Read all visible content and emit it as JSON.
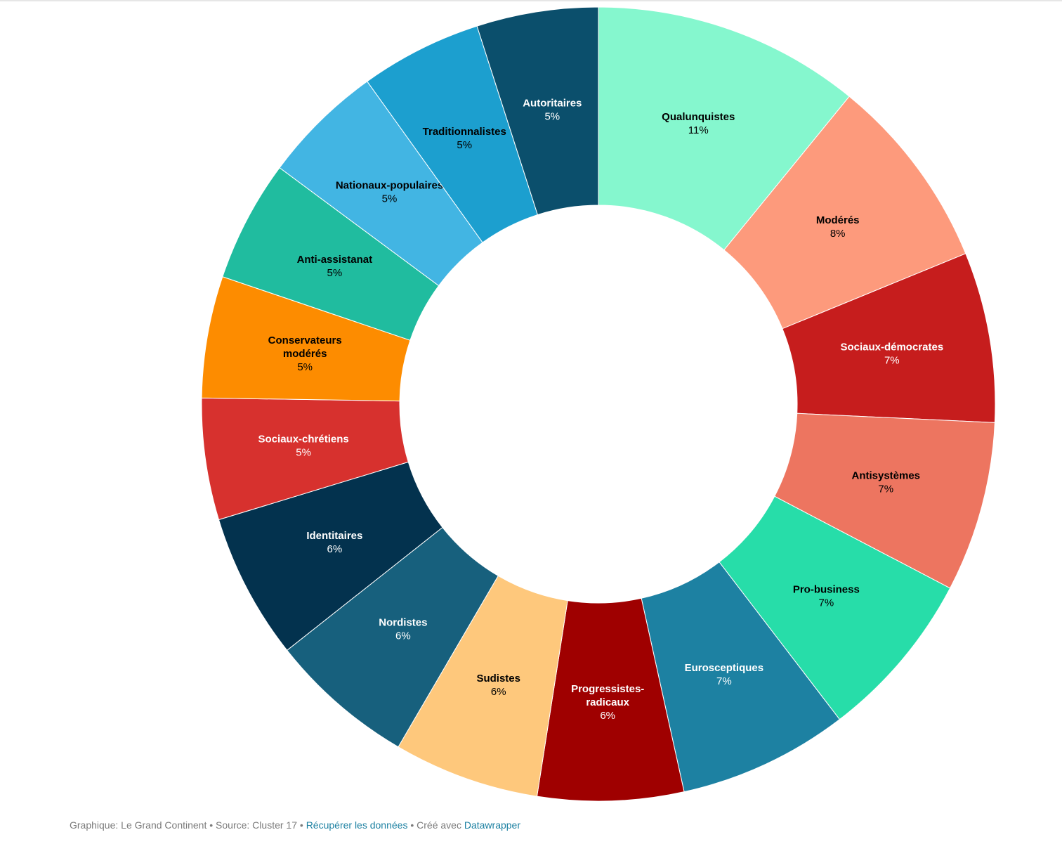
{
  "chart_data": {
    "type": "pie",
    "donut": true,
    "segments": [
      {
        "name": "Qualunquistes",
        "label_lines": [
          "Qualunquistes"
        ],
        "value": 11,
        "display": "11%",
        "color": "#85f7ce",
        "text_color": "#000000"
      },
      {
        "name": "Modérés",
        "label_lines": [
          "Modérés"
        ],
        "value": 8,
        "display": "8%",
        "color": "#fd9a7c",
        "text_color": "#000000"
      },
      {
        "name": "Sociaux-démocrates",
        "label_lines": [
          "Sociaux-démocrates"
        ],
        "value": 7,
        "display": "7%",
        "color": "#c61d1d",
        "text_color": "#ffffff"
      },
      {
        "name": "Antisystèmes",
        "label_lines": [
          "Antisystèmes"
        ],
        "value": 7,
        "display": "7%",
        "color": "#ed7560",
        "text_color": "#000000"
      },
      {
        "name": "Pro-business",
        "label_lines": [
          "Pro-business"
        ],
        "value": 7,
        "display": "7%",
        "color": "#27dda9",
        "text_color": "#000000"
      },
      {
        "name": "Eurosceptiques",
        "label_lines": [
          "Eurosceptiques"
        ],
        "value": 7,
        "display": "7%",
        "color": "#1d81a2",
        "text_color": "#ffffff"
      },
      {
        "name": "Progressistes-radicaux",
        "label_lines": [
          "Progressistes-",
          "radicaux"
        ],
        "value": 6,
        "display": "6%",
        "color": "#9f0000",
        "text_color": "#ffffff"
      },
      {
        "name": "Sudistes",
        "label_lines": [
          "Sudistes"
        ],
        "value": 6,
        "display": "6%",
        "color": "#fec87c",
        "text_color": "#000000"
      },
      {
        "name": "Nordistes",
        "label_lines": [
          "Nordistes"
        ],
        "value": 6,
        "display": "6%",
        "color": "#17607d",
        "text_color": "#ffffff"
      },
      {
        "name": "Identitaires",
        "label_lines": [
          "Identitaires"
        ],
        "value": 6,
        "display": "6%",
        "color": "#03324e",
        "text_color": "#ffffff"
      },
      {
        "name": "Sociaux-chrétiens",
        "label_lines": [
          "Sociaux-chrétiens"
        ],
        "value": 5,
        "display": "5%",
        "color": "#d7312e",
        "text_color": "#ffffff"
      },
      {
        "name": "Conservateurs modérés",
        "label_lines": [
          "Conservateurs",
          "modérés"
        ],
        "value": 5,
        "display": "5%",
        "color": "#fd8c00",
        "text_color": "#000000"
      },
      {
        "name": "Anti-assistanat",
        "label_lines": [
          "Anti-assistanat"
        ],
        "value": 5,
        "display": "5%",
        "color": "#20bc9f",
        "text_color": "#000000"
      },
      {
        "name": "Nationaux-populaires",
        "label_lines": [
          "Nationaux-populaires"
        ],
        "value": 5,
        "display": "5%",
        "color": "#42b5e3",
        "text_color": "#000000"
      },
      {
        "name": "Traditionnalistes",
        "label_lines": [
          "Traditionnalistes"
        ],
        "value": 5,
        "display": "5%",
        "color": "#1c9fcf",
        "text_color": "#000000"
      },
      {
        "name": "Autoritaires",
        "label_lines": [
          "Autoritaires"
        ],
        "value": 5,
        "display": "5%",
        "color": "#0b4f6c",
        "text_color": "#ffffff"
      }
    ]
  },
  "footer": {
    "chart_by": "Graphique: Le Grand Continent",
    "separator": " • ",
    "source": "Source: Cluster 17",
    "get_data_link": "Récupérer les données",
    "created_with": "Créé avec",
    "datawrapper_link": "Datawrapper",
    "link_color": "#1d81a2"
  }
}
